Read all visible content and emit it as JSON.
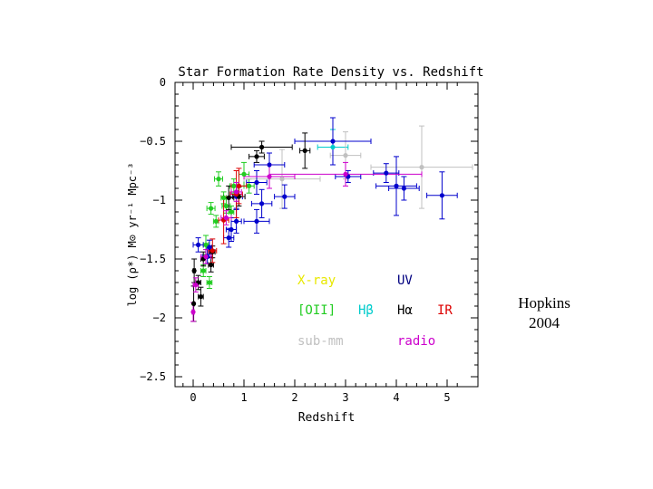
{
  "chart_data": {
    "type": "scatter",
    "title": "Star Formation Rate Density vs. Redshift",
    "xlabel": "Redshift",
    "ylabel": "log (ρ*) M⊙ yr⁻¹ Mpc⁻³",
    "xlim": [
      -0.4,
      5.6
    ],
    "ylim": [
      -2.6,
      0.05
    ],
    "x_ticks": [
      0,
      1,
      2,
      3,
      4,
      5
    ],
    "x_tick_labels": [
      "0",
      "1",
      "2",
      "3",
      "4",
      "5"
    ],
    "y_ticks": [
      0,
      -0.5,
      -1,
      -1.5,
      -2,
      -2.5
    ],
    "y_tick_labels": [
      "0",
      "−0.5",
      "−1",
      "−1.5",
      "−2",
      "−2.5"
    ],
    "grid": false,
    "legend_position": "bottom-right (inside plot)",
    "series": [
      {
        "name": "X-ray",
        "color": "#e8e800",
        "points": []
      },
      {
        "name": "[OII]",
        "color": "#22cc22",
        "points": [
          {
            "x": 0.35,
            "y": -1.07,
            "xe": 0.08,
            "ye": 0.05
          },
          {
            "x": 0.5,
            "y": -0.82,
            "xe": 0.08,
            "ye": 0.06
          },
          {
            "x": 0.65,
            "y": -1.05,
            "xe": 0.08,
            "ye": 0.06
          },
          {
            "x": 0.8,
            "y": -0.88,
            "xe": 0.08,
            "ye": 0.06
          },
          {
            "x": 1.0,
            "y": -0.78,
            "xe": 0.1,
            "ye": 0.1
          },
          {
            "x": 0.25,
            "y": -1.38,
            "xe": 0.05,
            "ye": 0.08
          },
          {
            "x": 0.32,
            "y": -1.7,
            "xe": 0.05,
            "ye": 0.05
          },
          {
            "x": 0.2,
            "y": -1.6,
            "xe": 0.05,
            "ye": 0.05
          },
          {
            "x": 0.45,
            "y": -1.18,
            "xe": 0.05,
            "ye": 0.05
          },
          {
            "x": 0.6,
            "y": -0.98,
            "xe": 0.05,
            "ye": 0.05
          },
          {
            "x": 1.1,
            "y": -0.88,
            "xe": 0.1,
            "ye": 0.06
          },
          {
            "x": 0.75,
            "y": -1.1,
            "xe": 0.05,
            "ye": 0.05
          }
        ]
      },
      {
        "name": "Hβ",
        "color": "#00cccc",
        "points": [
          {
            "x": 2.75,
            "y": -0.55,
            "xe": 0.3,
            "ye": 0.15
          }
        ]
      },
      {
        "name": "sub-mm",
        "color": "#c0c0c0",
        "points": [
          {
            "x": 1.75,
            "y": -0.82,
            "xe": 0.75,
            "ye": 0.25
          },
          {
            "x": 4.5,
            "y": -0.72,
            "xe": 1.0,
            "ye": 0.35
          },
          {
            "x": 3.0,
            "y": -0.62,
            "xe": 0.3,
            "ye": 0.2
          }
        ]
      },
      {
        "name": "UV",
        "color": "#0000cc",
        "points": [
          {
            "x": 2.75,
            "y": -0.5,
            "xe": 0.75,
            "ye": 0.2
          },
          {
            "x": 3.05,
            "y": -0.8,
            "xe": 0.25,
            "ye": 0.05
          },
          {
            "x": 3.8,
            "y": -0.77,
            "xe": 0.25,
            "ye": 0.08
          },
          {
            "x": 4.0,
            "y": -0.88,
            "xe": 0.4,
            "ye": 0.25
          },
          {
            "x": 4.15,
            "y": -0.9,
            "xe": 0.3,
            "ye": 0.1
          },
          {
            "x": 4.9,
            "y": -0.96,
            "xe": 0.3,
            "ye": 0.2
          },
          {
            "x": 1.5,
            "y": -0.7,
            "xe": 0.3,
            "ye": 0.1
          },
          {
            "x": 1.25,
            "y": -0.85,
            "xe": 0.2,
            "ye": 0.1
          },
          {
            "x": 1.35,
            "y": -1.03,
            "xe": 0.2,
            "ye": 0.12
          },
          {
            "x": 1.8,
            "y": -0.97,
            "xe": 0.2,
            "ye": 0.1
          },
          {
            "x": 1.25,
            "y": -1.18,
            "xe": 0.25,
            "ye": 0.1
          },
          {
            "x": 0.85,
            "y": -0.97,
            "xe": 0.12,
            "ye": 0.1
          },
          {
            "x": 0.75,
            "y": -1.25,
            "xe": 0.1,
            "ye": 0.1
          },
          {
            "x": 0.85,
            "y": -1.18,
            "xe": 0.1,
            "ye": 0.1
          },
          {
            "x": 0.7,
            "y": -1.32,
            "xe": 0.1,
            "ye": 0.08
          },
          {
            "x": 0.1,
            "y": -1.38,
            "xe": 0.1,
            "ye": 0.06
          },
          {
            "x": 0.28,
            "y": -1.48,
            "xe": 0.1,
            "ye": 0.06
          },
          {
            "x": 0.32,
            "y": -1.4,
            "xe": 0.05,
            "ye": 0.06
          }
        ]
      },
      {
        "name": "Hα",
        "color": "#000000",
        "points": [
          {
            "x": 1.35,
            "y": -0.55,
            "xe": 0.6,
            "ye": 0.05
          },
          {
            "x": 1.25,
            "y": -0.63,
            "xe": 0.15,
            "ye": 0.05
          },
          {
            "x": 2.2,
            "y": -0.58,
            "xe": 0.1,
            "ye": 0.15
          },
          {
            "x": 0.7,
            "y": -0.98,
            "xe": 0.1,
            "ye": 0.1
          },
          {
            "x": 0.9,
            "y": -0.97,
            "xe": 0.12,
            "ye": 0.08
          },
          {
            "x": 0.02,
            "y": -1.6,
            "xe": 0.02,
            "ye": 0.1
          },
          {
            "x": 0.01,
            "y": -1.88,
            "xe": 0.01,
            "ye": 0.15
          },
          {
            "x": 0.15,
            "y": -1.82,
            "xe": 0.05,
            "ye": 0.08
          },
          {
            "x": 0.2,
            "y": -1.5,
            "xe": 0.05,
            "ye": 0.06
          },
          {
            "x": 0.35,
            "y": -1.55,
            "xe": 0.05,
            "ye": 0.06
          },
          {
            "x": 0.1,
            "y": -1.7,
            "xe": 0.05,
            "ye": 0.06
          },
          {
            "x": 0.38,
            "y": -1.44,
            "xe": 0.05,
            "ye": 0.05
          }
        ]
      },
      {
        "name": "IR",
        "color": "#dd0000",
        "points": [
          {
            "x": 0.38,
            "y": -1.43,
            "xe": 0.08,
            "ye": 0.1
          },
          {
            "x": 0.6,
            "y": -1.17,
            "xe": 0.1,
            "ye": 0.2
          },
          {
            "x": 0.85,
            "y": -0.95,
            "xe": 0.12,
            "ye": 0.2
          },
          {
            "x": 0.9,
            "y": -0.88,
            "xe": 0.15,
            "ye": 0.15
          }
        ]
      },
      {
        "name": "radio",
        "color": "#cc00cc",
        "points": [
          {
            "x": 0.0,
            "y": -1.95,
            "xe": 0.02,
            "ye": 0.08
          },
          {
            "x": 0.05,
            "y": -1.72,
            "xe": 0.05,
            "ye": 0.06
          },
          {
            "x": 0.25,
            "y": -1.48,
            "xe": 0.1,
            "ye": 0.06
          },
          {
            "x": 0.65,
            "y": -1.15,
            "xe": 0.1,
            "ye": 0.06
          },
          {
            "x": 0.85,
            "y": -0.93,
            "xe": 0.1,
            "ye": 0.08
          },
          {
            "x": 1.5,
            "y": -0.8,
            "xe": 0.5,
            "ye": 0.1
          },
          {
            "x": 3.0,
            "y": -0.78,
            "xe": 1.5,
            "ye": 0.1
          }
        ]
      }
    ],
    "legend": [
      {
        "label": "X-ray",
        "color": "#e8e800"
      },
      {
        "label": "UV",
        "color": "#000080"
      },
      {
        "label": "[OII]",
        "color": "#22cc22"
      },
      {
        "label": "Hβ",
        "color": "#00cccc"
      },
      {
        "label": "Hα",
        "color": "#000000"
      },
      {
        "label": "IR",
        "color": "#dd0000"
      },
      {
        "label": "sub-mm",
        "color": "#c0c0c0"
      },
      {
        "label": "radio",
        "color": "#cc00cc"
      }
    ]
  },
  "credit": {
    "line1": "Hopkins",
    "line2": "2004"
  }
}
